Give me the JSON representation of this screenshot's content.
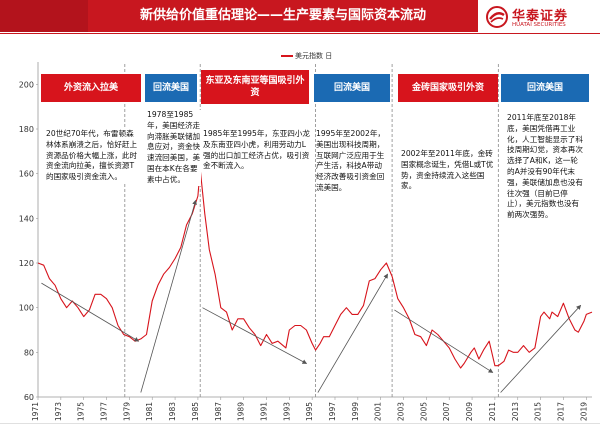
{
  "header": {
    "title": "新供给价值重估理论——生产要素与国际资本流动",
    "logo_cn": "华泰证券",
    "logo_en": "HUATAI SECURITIES"
  },
  "colors": {
    "brand_red": "#c8171f",
    "series_red": "#d7141c",
    "banner_blue": "#1b6ab3",
    "arrow": "#555555"
  },
  "banners": [
    {
      "label": "外资流入拉美",
      "color": "red"
    },
    {
      "label": "回流美国",
      "color": "blue"
    },
    {
      "label": "东亚及东南亚等国吸引外资",
      "color": "red"
    },
    {
      "label": "回流美国",
      "color": "blue"
    },
    {
      "label": "金砖国家吸引外资",
      "color": "red"
    },
    {
      "label": "回流美国",
      "color": "blue"
    }
  ],
  "notes": [
    "20世纪70年代，布雷顿森林体系崩溃之后，恰好赶上资源品价格大幅上涨，此时资金流向拉美，擅长资源T的国家吸引资金流入。",
    "1978至1985年，美国经济走向滞胀美联储加息应对，资金快速流回美国，美国在本K在各要素中占优。",
    "1985年至1995年，东亚四小龙及东南亚四小虎，利用劳动力L强的出口加工经济占优，吸引资金不断流入。",
    "1995年至2002年，美国出现科技周期，互联网广泛应用于生产生活，科技A带动经济改善吸引资金回流美国。",
    "2002年至2011年底，金砖国家概念诞生，凭借L或T优势，资金持续流入这些国家。",
    "2011年底至2018年底，美国凭借再工业化，人工智能显示了科技周期幻觉，资本再次选择了A和K，这一轮的A并没有90年代末强，美联储加息也没有往次强（目前已停止），美元指数也没有前两次强势。"
  ],
  "chart_data": {
    "type": "line",
    "title": "",
    "xlabel": "",
    "ylabel": "",
    "ylim": [
      60,
      210
    ],
    "yticks": [
      60,
      80,
      100,
      120,
      140,
      160,
      180,
      200
    ],
    "xlim": [
      1971,
      2019.5
    ],
    "xticks": [
      "1971",
      "1973",
      "1975",
      "1977",
      "1979",
      "1981",
      "1983",
      "1985",
      "1987",
      "1989",
      "1991",
      "1993",
      "1995",
      "1997",
      "1999",
      "2001",
      "2003",
      "2005",
      "2007",
      "2009",
      "2011",
      "2013",
      "2015",
      "2017",
      "2019"
    ],
    "grid": false,
    "legend": "top-center",
    "series": [
      {
        "name": "美元指数 日",
        "x": [
          1971.0,
          1971.5,
          1972.0,
          1972.5,
          1973.0,
          1973.5,
          1974.0,
          1974.5,
          1975.0,
          1975.5,
          1976.0,
          1976.5,
          1977.0,
          1977.5,
          1978.0,
          1978.5,
          1979.0,
          1979.5,
          1980.0,
          1980.5,
          1981.0,
          1981.5,
          1982.0,
          1982.5,
          1983.0,
          1983.5,
          1984.0,
          1984.5,
          1985.0,
          1985.2,
          1985.6,
          1986.0,
          1986.5,
          1987.0,
          1987.5,
          1988.0,
          1988.5,
          1989.0,
          1989.5,
          1990.0,
          1990.5,
          1991.0,
          1991.5,
          1992.0,
          1992.7,
          1993.0,
          1993.5,
          1994.0,
          1994.5,
          1995.0,
          1995.3,
          1995.7,
          1996.0,
          1996.5,
          1997.0,
          1997.5,
          1998.0,
          1998.5,
          1999.0,
          1999.5,
          2000.0,
          2000.5,
          2001.0,
          2001.5,
          2002.0,
          2002.5,
          2003.0,
          2003.5,
          2004.0,
          2004.5,
          2005.0,
          2005.5,
          2006.0,
          2006.5,
          2007.0,
          2007.5,
          2008.0,
          2008.3,
          2008.9,
          2009.2,
          2009.6,
          2010.0,
          2010.5,
          2011.0,
          2011.3,
          2011.8,
          2012.2,
          2012.6,
          2013.0,
          2013.5,
          2014.0,
          2014.5,
          2015.0,
          2015.3,
          2015.8,
          2016.0,
          2016.5,
          2017.0,
          2017.5,
          2018.0,
          2018.3,
          2018.8,
          2019.0,
          2019.5
        ],
        "values": [
          120,
          119,
          113,
          110,
          104,
          100,
          103,
          100,
          96,
          99,
          106,
          106,
          104,
          100,
          92,
          88,
          87,
          85,
          86,
          88,
          103,
          110,
          115,
          118,
          122,
          127,
          137,
          142,
          150,
          162,
          142,
          126,
          115,
          100,
          98,
          90,
          95,
          95,
          91,
          88,
          83,
          88,
          84,
          85,
          82,
          90,
          92,
          92,
          90,
          84,
          81,
          84,
          87,
          87,
          92,
          97,
          100,
          97,
          97,
          101,
          112,
          113,
          117,
          120,
          114,
          104,
          100,
          95,
          88,
          87,
          83,
          90,
          88,
          85,
          82,
          77,
          73,
          75,
          80,
          82,
          77,
          81,
          85,
          74,
          74,
          76,
          81,
          80,
          80,
          83,
          80,
          82,
          96,
          98,
          95,
          98,
          96,
          102,
          95,
          90,
          89,
          94,
          97,
          98
        ]
      }
    ]
  }
}
